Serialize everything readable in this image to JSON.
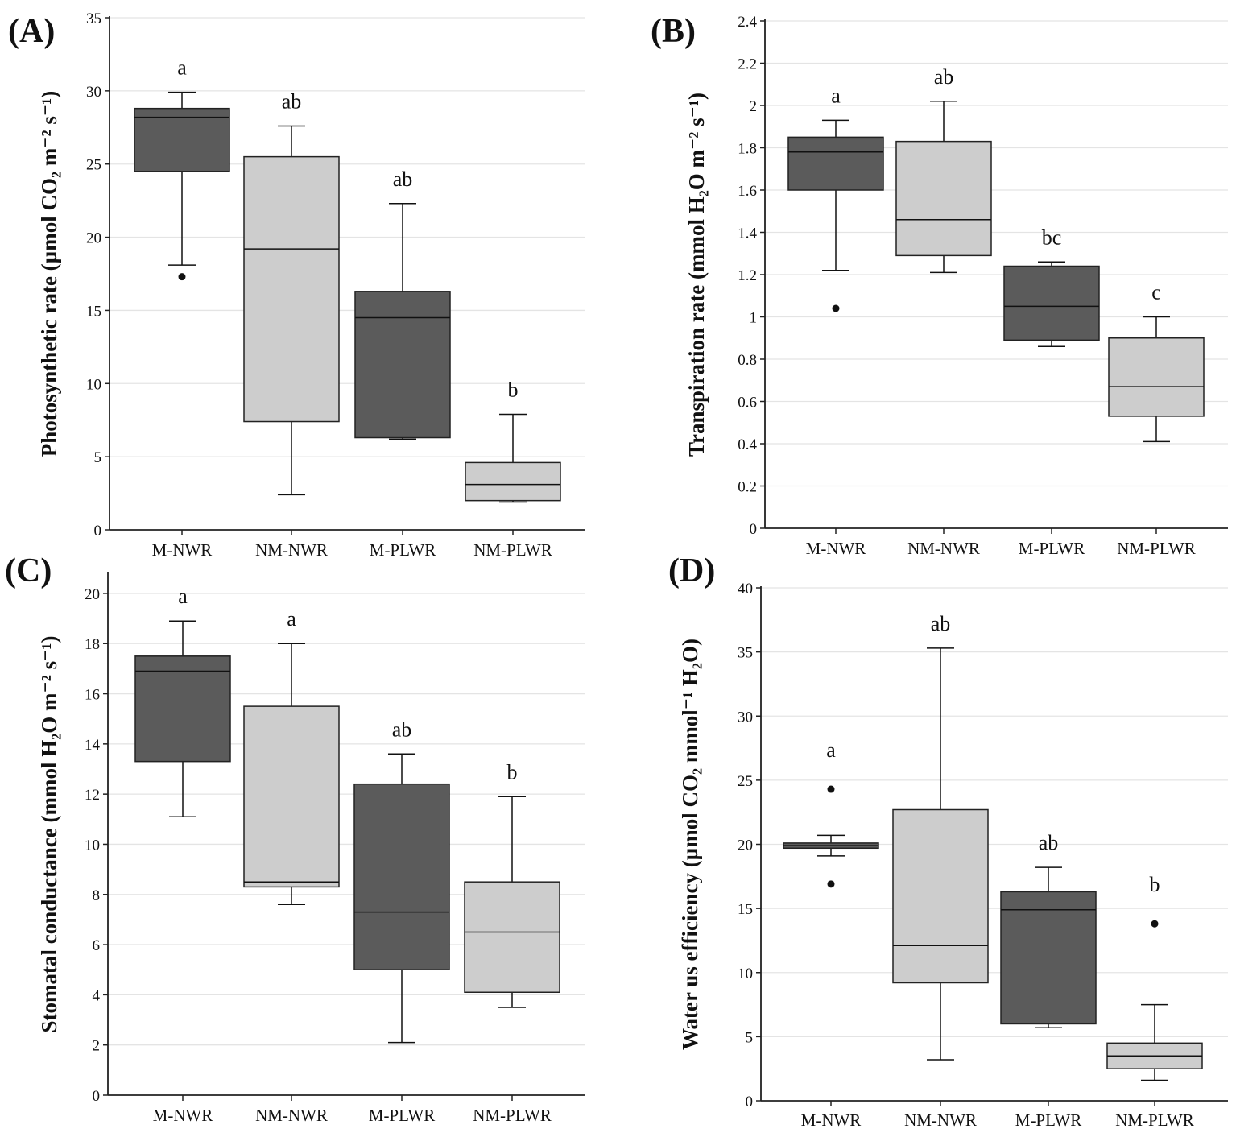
{
  "chart_data": [
    {
      "type": "box",
      "panel_label": "(A)",
      "ylabel": "Photosynthetic rate (µmol CO₂ m⁻² s⁻¹)",
      "ylim": [
        0,
        35
      ],
      "yticks": [
        0,
        5,
        10,
        15,
        20,
        25,
        30,
        35
      ],
      "ytick_labels": [
        "0",
        "5",
        "10",
        "15",
        "20",
        "25",
        "30",
        "35"
      ],
      "grid": true,
      "categories": [
        "M-NWR",
        "NM-NWR",
        "M-PLWR",
        "NM-PLWR"
      ],
      "boxes": [
        {
          "min": 18.1,
          "q1": 24.5,
          "median": 28.2,
          "q3": 28.8,
          "max": 29.9,
          "outliers": [
            17.3
          ],
          "letter": "a",
          "fill": "dark"
        },
        {
          "min": 2.4,
          "q1": 7.4,
          "median": 19.2,
          "q3": 25.5,
          "max": 27.6,
          "outliers": [],
          "letter": "ab",
          "fill": "light"
        },
        {
          "min": 6.2,
          "q1": 6.3,
          "median": 14.5,
          "q3": 16.3,
          "max": 22.3,
          "outliers": [],
          "letter": "ab",
          "fill": "dark"
        },
        {
          "min": 1.9,
          "q1": 2.0,
          "median": 3.1,
          "q3": 4.6,
          "max": 7.9,
          "outliers": [],
          "letter": "b",
          "fill": "light"
        }
      ]
    },
    {
      "type": "box",
      "panel_label": "(B)",
      "ylabel": "Transpiration rate (mmol H₂O m⁻² s⁻¹)",
      "ylim": [
        0,
        2.4
      ],
      "yticks": [
        0,
        0.2,
        0.4,
        0.6,
        0.8,
        1,
        1.2,
        1.4,
        1.6,
        1.8,
        2,
        2.2,
        2.4
      ],
      "ytick_labels": [
        "0",
        "0.2",
        "0.4",
        "0.6",
        "0.8",
        "1",
        "1.2",
        "1.4",
        "1.6",
        "1.8",
        "2",
        "2.2",
        "2.4"
      ],
      "grid": true,
      "categories": [
        "M-NWR",
        "NM-NWR",
        "M-PLWR",
        "NM-PLWR"
      ],
      "boxes": [
        {
          "min": 1.22,
          "q1": 1.6,
          "median": 1.78,
          "q3": 1.85,
          "max": 1.93,
          "outliers": [
            1.04
          ],
          "letter": "a",
          "fill": "dark"
        },
        {
          "min": 1.21,
          "q1": 1.29,
          "median": 1.46,
          "q3": 1.83,
          "max": 2.02,
          "outliers": [],
          "letter": "ab",
          "fill": "light"
        },
        {
          "min": 0.86,
          "q1": 0.89,
          "median": 1.05,
          "q3": 1.24,
          "max": 1.26,
          "outliers": [],
          "letter": "bc",
          "fill": "dark"
        },
        {
          "min": 0.41,
          "q1": 0.53,
          "median": 0.67,
          "q3": 0.9,
          "max": 1.0,
          "outliers": [],
          "letter": "c",
          "fill": "light"
        }
      ]
    },
    {
      "type": "box",
      "panel_label": "(C)",
      "ylabel": "Stomatal conductance (mmol H₂O m⁻² s⁻¹)",
      "ylim": [
        0,
        20.8
      ],
      "yticks": [
        0,
        2,
        4,
        6,
        8,
        10,
        12,
        14,
        16,
        18,
        20
      ],
      "ytick_labels": [
        "0",
        "2",
        "4",
        "6",
        "8",
        "10",
        "12",
        "14",
        "16",
        "18",
        "20"
      ],
      "grid": true,
      "categories": [
        "M-NWR",
        "NM-NWR",
        "M-PLWR",
        "NM-PLWR"
      ],
      "boxes": [
        {
          "min": 11.1,
          "q1": 13.3,
          "median": 16.9,
          "q3": 17.5,
          "max": 18.9,
          "outliers": [],
          "letter": "a",
          "fill": "dark"
        },
        {
          "min": 7.6,
          "q1": 8.3,
          "median": 8.5,
          "q3": 15.5,
          "max": 18.0,
          "outliers": [],
          "letter": "a",
          "fill": "light"
        },
        {
          "min": 2.1,
          "q1": 5.0,
          "median": 7.3,
          "q3": 12.4,
          "max": 13.6,
          "outliers": [],
          "letter": "ab",
          "fill": "dark"
        },
        {
          "min": 3.5,
          "q1": 4.1,
          "median": 6.5,
          "q3": 8.5,
          "max": 11.9,
          "outliers": [],
          "letter": "b",
          "fill": "light"
        }
      ]
    },
    {
      "type": "box",
      "panel_label": "(D)",
      "ylabel": "Water us efficiency (µmol CO₂ mmol⁻¹ H₂O)",
      "ylim": [
        0,
        40
      ],
      "yticks": [
        0,
        5,
        10,
        15,
        20,
        25,
        30,
        35,
        40
      ],
      "ytick_labels": [
        "0",
        "5",
        "10",
        "15",
        "20",
        "25",
        "30",
        "35",
        "40"
      ],
      "grid": true,
      "categories": [
        "M-NWR",
        "NM-NWR",
        "M-PLWR",
        "NM-PLWR"
      ],
      "boxes": [
        {
          "min": 19.1,
          "q1": 19.7,
          "median": 19.9,
          "q3": 20.1,
          "max": 20.7,
          "outliers": [
            24.3,
            16.9
          ],
          "letter": "a",
          "fill": "dark"
        },
        {
          "min": 3.2,
          "q1": 9.2,
          "median": 12.1,
          "q3": 22.7,
          "max": 35.3,
          "outliers": [],
          "letter": "ab",
          "fill": "light"
        },
        {
          "min": 5.7,
          "q1": 6.0,
          "median": 14.9,
          "q3": 16.3,
          "max": 18.2,
          "outliers": [],
          "letter": "ab",
          "fill": "dark"
        },
        {
          "min": 1.6,
          "q1": 2.5,
          "median": 3.5,
          "q3": 4.5,
          "max": 7.5,
          "outliers": [
            13.8
          ],
          "letter": "b",
          "fill": "light"
        }
      ]
    }
  ],
  "colors": {
    "dark": "#5b5b5b",
    "light": "#cdcdcd",
    "grid": "#e4e4e4",
    "axis": "#222222"
  }
}
